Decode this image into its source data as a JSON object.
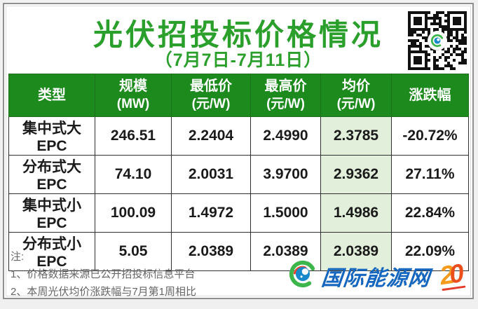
{
  "colors": {
    "accent-green": "#2b9f2b",
    "header-green": "#1d8a1e",
    "light-green": "#e2efda",
    "text-dark": "#1a1a1a",
    "note-gray": "#666666",
    "logo-blue": "#1566be",
    "logo-green": "#3cb54a",
    "logo-orange": "#f59a1d",
    "logo-red": "#e94e1b",
    "border-dark": "#2f2f2f"
  },
  "header": {
    "title": "光伏招投标价格情况",
    "subtitle": "（7月7日-7月11日）"
  },
  "table": {
    "columns": [
      {
        "label": "类型",
        "unit": ""
      },
      {
        "label": "规模",
        "unit": "(MW)"
      },
      {
        "label": "最低价",
        "unit": "(元/W)"
      },
      {
        "label": "最高价",
        "unit": "(元/W)"
      },
      {
        "label": "均价",
        "unit": "(元/W)"
      },
      {
        "label": "涨跌幅",
        "unit": ""
      }
    ],
    "rows": [
      {
        "type": "集中式大EPC",
        "scale": "246.51",
        "min": "2.2404",
        "max": "2.4990",
        "avg": "2.3785",
        "change": "-20.72%"
      },
      {
        "type": "分布式大EPC",
        "scale": "74.10",
        "min": "2.0031",
        "max": "3.9700",
        "avg": "2.9362",
        "change": "27.11%"
      },
      {
        "type": "集中式小EPC",
        "scale": "100.09",
        "min": "1.4972",
        "max": "1.5000",
        "avg": "1.4986",
        "change": "22.84%"
      },
      {
        "type": "分布式小EPC",
        "scale": "5.05",
        "min": "2.0389",
        "max": "2.0389",
        "avg": "2.0389",
        "change": "22.09%"
      }
    ]
  },
  "notes": {
    "label": "注:",
    "items": [
      "1、价格数据来源已公开招投标信息平台",
      "2、本周光伏均价涨跌幅与7月第1周相比"
    ]
  },
  "footer": {
    "brand": "国际能源网",
    "anniversary": "20"
  },
  "chart_data": {
    "type": "table",
    "title": "光伏招投标价格情况",
    "subtitle": "（7月7日-7月11日）",
    "columns": [
      "类型",
      "规模(MW)",
      "最低价(元/W)",
      "最高价(元/W)",
      "均价(元/W)",
      "涨跌幅"
    ],
    "rows": [
      [
        "集中式大EPC",
        246.51,
        2.2404,
        2.499,
        2.3785,
        "-20.72%"
      ],
      [
        "分布式大EPC",
        74.1,
        2.0031,
        3.97,
        2.9362,
        "27.11%"
      ],
      [
        "集中式小EPC",
        100.09,
        1.4972,
        1.5,
        1.4986,
        "22.84%"
      ],
      [
        "分布式小EPC",
        5.05,
        2.0389,
        2.0389,
        2.0389,
        "22.09%"
      ]
    ],
    "highlight_column": "均价(元/W)",
    "notes": [
      "注:",
      "1、价格数据来源已公开招投标信息平台",
      "2、本周光伏均价涨跌幅与7月第1周相比"
    ]
  }
}
